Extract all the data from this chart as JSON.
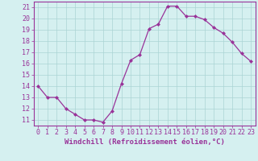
{
  "x": [
    0,
    1,
    2,
    3,
    4,
    5,
    6,
    7,
    8,
    9,
    10,
    11,
    12,
    13,
    14,
    15,
    16,
    17,
    18,
    19,
    20,
    21,
    22,
    23
  ],
  "y": [
    14,
    13,
    13,
    12,
    11.5,
    11,
    11,
    10.8,
    11.8,
    14.2,
    16.3,
    16.8,
    19.1,
    19.5,
    21.1,
    21.1,
    20.2,
    20.2,
    19.9,
    19.2,
    18.7,
    17.9,
    16.9,
    16.2
  ],
  "line_color": "#993399",
  "marker": "D",
  "marker_size": 2,
  "bg_color": "#d5f0f0",
  "grid_color": "#aad4d4",
  "xlabel": "Windchill (Refroidissement éolien,°C)",
  "xlim": [
    -0.5,
    23.5
  ],
  "ylim": [
    10.5,
    21.5
  ],
  "yticks": [
    11,
    12,
    13,
    14,
    15,
    16,
    17,
    18,
    19,
    20,
    21
  ],
  "xticks": [
    0,
    1,
    2,
    3,
    4,
    5,
    6,
    7,
    8,
    9,
    10,
    11,
    12,
    13,
    14,
    15,
    16,
    17,
    18,
    19,
    20,
    21,
    22,
    23
  ],
  "label_fontsize": 6.5,
  "tick_fontsize": 6
}
